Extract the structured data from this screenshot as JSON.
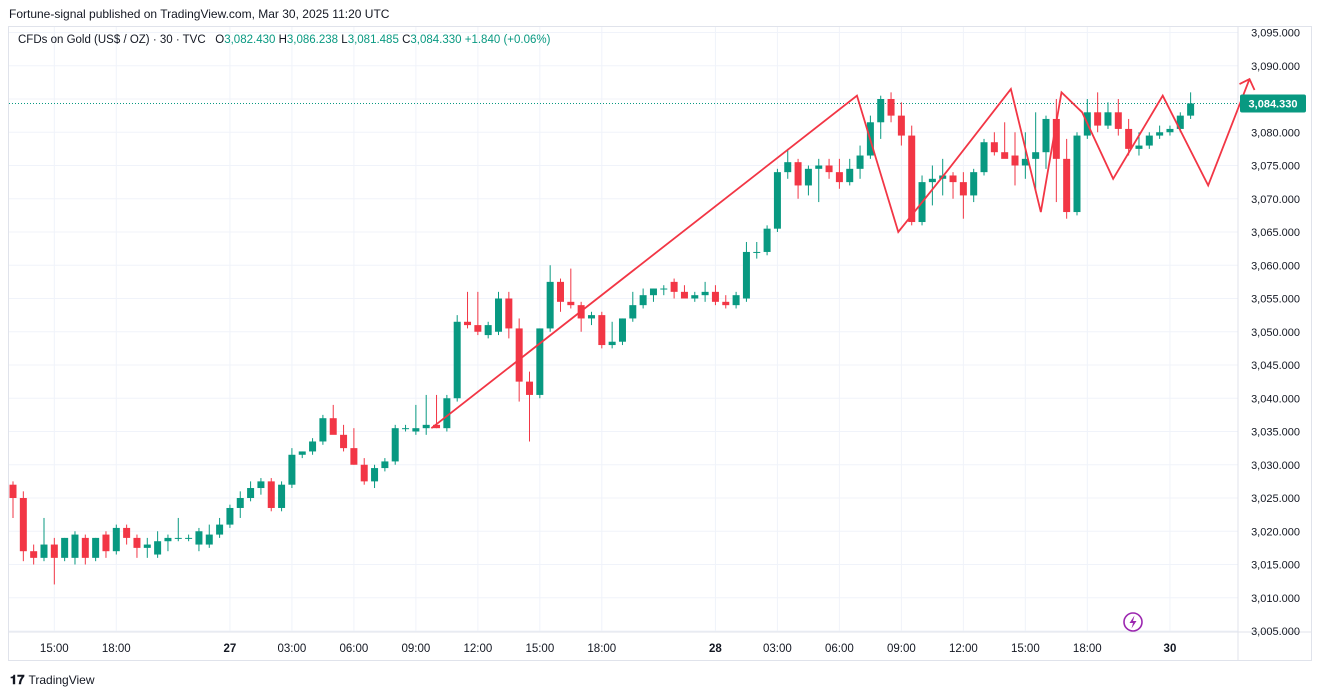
{
  "publisher_line": "Fortune-signal published on TradingView.com, Mar 30, 2025 11:20 UTC",
  "legend": {
    "symbol": "CFDs on Gold (US$ / OZ) · 30 · TVC",
    "open_label": "O",
    "open": "3,082.430",
    "high_label": "H",
    "high": "3,086.238",
    "low_label": "L",
    "low": "3,081.485",
    "close_label": "C",
    "close": "3,084.330",
    "change": "+1.840 (+0.06%)"
  },
  "footer": {
    "logo": "𝟏𝟕",
    "brand": "TradingView"
  },
  "colors": {
    "up": "#089981",
    "down": "#f23645",
    "pattern": "#f23645",
    "grid": "#f0f3fa",
    "price_tag": "#089981"
  },
  "chart_data": {
    "type": "candlestick",
    "ylim": [
      3004,
      3096
    ],
    "y_ticks": [
      "3,095.000",
      "3,090.000",
      "3,085.000",
      "3,080.000",
      "3,075.000",
      "3,070.000",
      "3,065.000",
      "3,060.000",
      "3,055.000",
      "3,050.000",
      "3,045.000",
      "3,040.000",
      "3,035.000",
      "3,030.000",
      "3,025.000",
      "3,020.000",
      "3,015.000",
      "3,010.000",
      "3,005.000"
    ],
    "y_tick_values": [
      3095,
      3090,
      3085,
      3080,
      3075,
      3070,
      3065,
      3060,
      3055,
      3050,
      3045,
      3040,
      3035,
      3030,
      3025,
      3020,
      3015,
      3010,
      3005
    ],
    "x_ticks": [
      {
        "i": 4,
        "label": "15:00",
        "bold": false
      },
      {
        "i": 10,
        "label": "18:00",
        "bold": false
      },
      {
        "i": 21,
        "label": "27",
        "bold": true
      },
      {
        "i": 27,
        "label": "03:00",
        "bold": false
      },
      {
        "i": 33,
        "label": "06:00",
        "bold": false
      },
      {
        "i": 39,
        "label": "09:00",
        "bold": false
      },
      {
        "i": 45,
        "label": "12:00",
        "bold": false
      },
      {
        "i": 51,
        "label": "15:00",
        "bold": false
      },
      {
        "i": 57,
        "label": "18:00",
        "bold": false
      },
      {
        "i": 68,
        "label": "28",
        "bold": true
      },
      {
        "i": 74,
        "label": "03:00",
        "bold": false
      },
      {
        "i": 80,
        "label": "06:00",
        "bold": false
      },
      {
        "i": 86,
        "label": "09:00",
        "bold": false
      },
      {
        "i": 92,
        "label": "12:00",
        "bold": false
      },
      {
        "i": 98,
        "label": "15:00",
        "bold": false
      },
      {
        "i": 104,
        "label": "18:00",
        "bold": false
      },
      {
        "i": 112,
        "label": "30",
        "bold": true
      }
    ],
    "last_price": 3084.33,
    "last_price_label": "3,084.330",
    "candles": [
      [
        3027,
        3027.5,
        3022,
        3025
      ],
      [
        3025,
        3026,
        3015.5,
        3017
      ],
      [
        3017,
        3018,
        3015,
        3016
      ],
      [
        3016,
        3022,
        3015.5,
        3018
      ],
      [
        3018,
        3019,
        3012,
        3016
      ],
      [
        3016,
        3019,
        3015.5,
        3019
      ],
      [
        3016,
        3020,
        3015,
        3019.5
      ],
      [
        3019,
        3019.5,
        3015,
        3016
      ],
      [
        3016,
        3019,
        3015.5,
        3019
      ],
      [
        3019.5,
        3020,
        3016,
        3017
      ],
      [
        3017,
        3021,
        3016.5,
        3020.5
      ],
      [
        3020.5,
        3021,
        3018,
        3019
      ],
      [
        3019,
        3019.5,
        3016,
        3017.5
      ],
      [
        3017.5,
        3019,
        3016,
        3018
      ],
      [
        3016.5,
        3020,
        3016,
        3018.5
      ],
      [
        3018.5,
        3019.5,
        3017,
        3019
      ],
      [
        3019,
        3022,
        3018.5,
        3019
      ],
      [
        3019,
        3019.5,
        3018.5,
        3019
      ],
      [
        3018,
        3020.5,
        3017,
        3020
      ],
      [
        3018,
        3021,
        3017.5,
        3019.5
      ],
      [
        3019.5,
        3022,
        3019,
        3021
      ],
      [
        3021,
        3024,
        3020.5,
        3023.5
      ],
      [
        3023.5,
        3026,
        3022,
        3025
      ],
      [
        3025,
        3027.5,
        3024.5,
        3026.5
      ],
      [
        3026.5,
        3028,
        3025.5,
        3027.5
      ],
      [
        3027.5,
        3028,
        3023,
        3023.5
      ],
      [
        3023.5,
        3027.5,
        3023,
        3027
      ],
      [
        3027,
        3032.5,
        3026.5,
        3031.5
      ],
      [
        3031.5,
        3032,
        3031,
        3032
      ],
      [
        3032,
        3034,
        3031.5,
        3033.5
      ],
      [
        3033.5,
        3037.5,
        3033,
        3037
      ],
      [
        3037,
        3039,
        3035,
        3034.5
      ],
      [
        3034.5,
        3036,
        3032,
        3032.5
      ],
      [
        3032.5,
        3035.5,
        3030,
        3030
      ],
      [
        3030,
        3031,
        3027,
        3027.5
      ],
      [
        3027.5,
        3030,
        3026.5,
        3029.5
      ],
      [
        3029.5,
        3031,
        3029,
        3030.5
      ],
      [
        3030.5,
        3036,
        3030,
        3035.5
      ],
      [
        3035.5,
        3036,
        3035,
        3035.5
      ],
      [
        3035,
        3039,
        3034.5,
        3035.5
      ],
      [
        3035.5,
        3040.5,
        3034.5,
        3036
      ],
      [
        3036,
        3040.5,
        3035.5,
        3035.5
      ],
      [
        3035.5,
        3040.5,
        3035,
        3040
      ],
      [
        3040,
        3052.5,
        3039.5,
        3051.5
      ],
      [
        3051.5,
        3056,
        3050.5,
        3051
      ],
      [
        3051,
        3056,
        3049.5,
        3050
      ],
      [
        3049.5,
        3051.5,
        3049,
        3051
      ],
      [
        3050,
        3056,
        3049.5,
        3055
      ],
      [
        3055,
        3056,
        3049,
        3050.5
      ],
      [
        3050.5,
        3052,
        3039.5,
        3042.5
      ],
      [
        3042.5,
        3044,
        3033.5,
        3040.5
      ],
      [
        3040.5,
        3050.5,
        3040,
        3050.5
      ],
      [
        3050.5,
        3060,
        3050,
        3057.5
      ],
      [
        3057.5,
        3058,
        3053,
        3054.5
      ],
      [
        3054.5,
        3059.5,
        3053.5,
        3054
      ],
      [
        3054,
        3054.5,
        3050,
        3052
      ],
      [
        3052,
        3053,
        3051,
        3052.5
      ],
      [
        3052.5,
        3053,
        3047.5,
        3048
      ],
      [
        3048,
        3051.5,
        3047.5,
        3048.5
      ],
      [
        3048.5,
        3052,
        3048,
        3052
      ],
      [
        3052,
        3056,
        3051.5,
        3054
      ],
      [
        3054,
        3056.5,
        3053.5,
        3055.5
      ],
      [
        3055.5,
        3056.5,
        3054.5,
        3056.5
      ],
      [
        3056.5,
        3057,
        3055.5,
        3056.5
      ],
      [
        3057.5,
        3058,
        3055,
        3056
      ],
      [
        3056,
        3057,
        3055,
        3055
      ],
      [
        3055,
        3056,
        3054.5,
        3055.5
      ],
      [
        3055.5,
        3057.5,
        3054.5,
        3056
      ],
      [
        3056,
        3057,
        3054,
        3054.5
      ],
      [
        3054.5,
        3055.5,
        3053.5,
        3054
      ],
      [
        3054,
        3056,
        3053.5,
        3055.5
      ],
      [
        3055,
        3063.5,
        3054.5,
        3062
      ],
      [
        3062,
        3063.5,
        3061,
        3062
      ],
      [
        3062,
        3066,
        3061.5,
        3065.5
      ],
      [
        3065.5,
        3074.5,
        3065,
        3074
      ],
      [
        3074,
        3077.5,
        3073,
        3075.5
      ],
      [
        3075.5,
        3076,
        3070,
        3072
      ],
      [
        3072,
        3075,
        3070.5,
        3074.5
      ],
      [
        3074.5,
        3076,
        3069.5,
        3075
      ],
      [
        3075,
        3076,
        3073,
        3074
      ],
      [
        3074,
        3076,
        3071.5,
        3072.5
      ],
      [
        3072.5,
        3076,
        3072,
        3074.5
      ],
      [
        3074.5,
        3078,
        3073,
        3076.5
      ],
      [
        3076.5,
        3082.5,
        3076,
        3081.5
      ],
      [
        3081.5,
        3085.5,
        3079,
        3085
      ],
      [
        3085,
        3086,
        3081.5,
        3082.5
      ],
      [
        3082.5,
        3084.5,
        3078,
        3079.5
      ],
      [
        3079.5,
        3081,
        3066,
        3066.5
      ],
      [
        3066.5,
        3073.5,
        3066,
        3072.5
      ],
      [
        3072.5,
        3075,
        3069,
        3073
      ],
      [
        3073,
        3076,
        3070.5,
        3073.5
      ],
      [
        3073.5,
        3074,
        3070,
        3072.5
      ],
      [
        3072.5,
        3074,
        3067,
        3070.5
      ],
      [
        3070.5,
        3074.5,
        3069.5,
        3074
      ],
      [
        3074,
        3079,
        3073.5,
        3078.5
      ],
      [
        3078.5,
        3080,
        3076.5,
        3077
      ],
      [
        3077,
        3081.5,
        3076.5,
        3076
      ],
      [
        3076.5,
        3080,
        3072,
        3075
      ],
      [
        3075,
        3080,
        3073,
        3076
      ],
      [
        3076,
        3083,
        3071,
        3077
      ],
      [
        3077,
        3082.5,
        3074.5,
        3082
      ],
      [
        3082,
        3085,
        3069.5,
        3076
      ],
      [
        3076,
        3079,
        3067,
        3068
      ],
      [
        3068,
        3080,
        3067.5,
        3079.5
      ],
      [
        3079.5,
        3085,
        3079,
        3083
      ],
      [
        3083,
        3086,
        3080,
        3081
      ],
      [
        3081,
        3084.5,
        3080.5,
        3083
      ],
      [
        3083,
        3085,
        3079.5,
        3080.5
      ],
      [
        3080.5,
        3082,
        3076.5,
        3077.5
      ],
      [
        3077.5,
        3080,
        3076.5,
        3078
      ],
      [
        3078,
        3080,
        3077.5,
        3079.5
      ],
      [
        3079.5,
        3081,
        3079,
        3080
      ],
      [
        3080,
        3081,
        3079.5,
        3080.5
      ],
      [
        3080.5,
        3083,
        3080,
        3082.5
      ],
      [
        3082.5,
        3086,
        3082,
        3084.33
      ]
    ],
    "pattern_points": [
      [
        40.5,
        3035.5
      ],
      [
        81.7,
        3085.5
      ],
      [
        85.7,
        3065
      ],
      [
        90.6,
        3074.5
      ],
      [
        96.6,
        3086.5
      ],
      [
        99.5,
        3068
      ],
      [
        101.5,
        3086
      ],
      [
        103.5,
        3083
      ],
      [
        106.5,
        3073
      ],
      [
        111.3,
        3085.5
      ],
      [
        115.7,
        3072
      ],
      [
        119.7,
        3088
      ]
    ],
    "arrow_tip": [
      119.7,
      3088
    ]
  }
}
